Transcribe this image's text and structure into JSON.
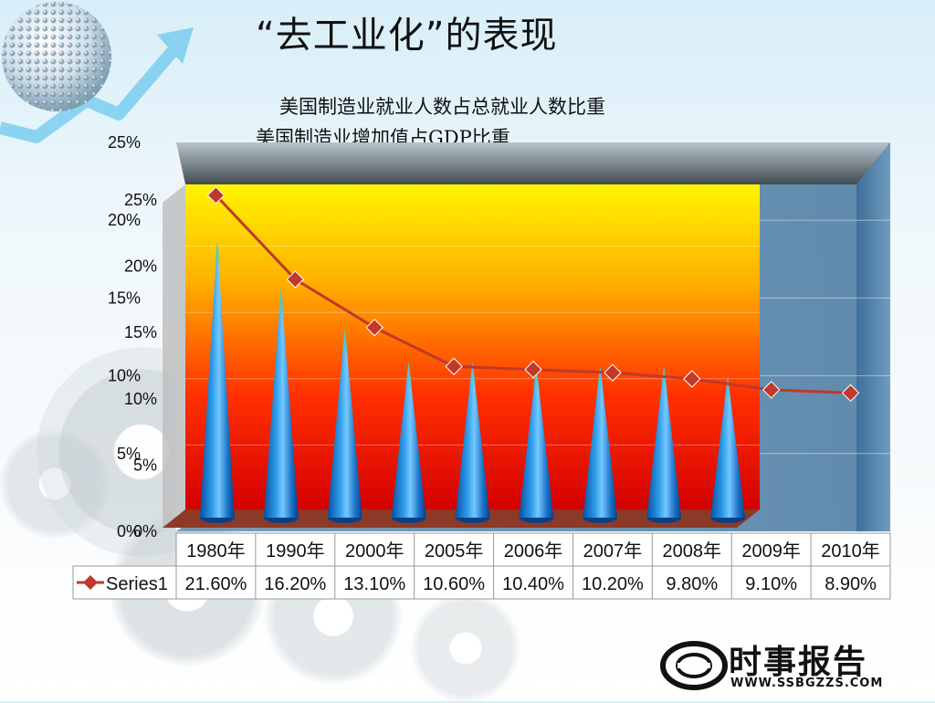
{
  "title": "“去工业化”的表现",
  "subtitle_1": "美国制造业就业人数占总就业人数比重",
  "subtitle_2": "美国制造业增加值占GDP比重",
  "logo": {
    "text": "时事报告",
    "url": "WWW.SSBGZZS.COM"
  },
  "colors": {
    "cone": "#1a7fd4",
    "line": "#c0392b",
    "back_wall_top": "#ffee00",
    "back_wall_bottom": "#ee0000",
    "frame": "#5b86a8"
  },
  "chart_data": [
    {
      "type": "bar",
      "shape": "cone-3d",
      "categories": [
        "1980年",
        "1990年",
        "2000年",
        "2005年",
        "2006年",
        "2007年",
        "2008年",
        "2009年",
        "2010年"
      ],
      "values": [
        21.6,
        18.0,
        15.0,
        12.5,
        12.5,
        12.2,
        12.2,
        12.2,
        11.4
      ],
      "y_tick_labels": [
        "0%",
        "5%",
        "10%",
        "15%",
        "20%",
        "25%"
      ],
      "ylim": [
        0,
        25
      ]
    },
    {
      "type": "line",
      "series": [
        {
          "name": "Series1",
          "values": [
            21.6,
            16.2,
            13.1,
            10.6,
            10.4,
            10.2,
            9.8,
            9.1,
            8.9
          ],
          "value_labels": [
            "21.60%",
            "16.20%",
            "13.10%",
            "10.60%",
            "10.40%",
            "10.20%",
            "9.80%",
            "9.10%",
            "8.90%"
          ]
        }
      ],
      "categories": [
        "1980年",
        "1990年",
        "2000年",
        "2005年",
        "2006年",
        "2007年",
        "2008年",
        "2009年",
        "2010年"
      ],
      "y_tick_labels": [
        "0%",
        "5%",
        "10%",
        "15%",
        "20%",
        "25%"
      ],
      "ylim": [
        0,
        25
      ]
    }
  ]
}
